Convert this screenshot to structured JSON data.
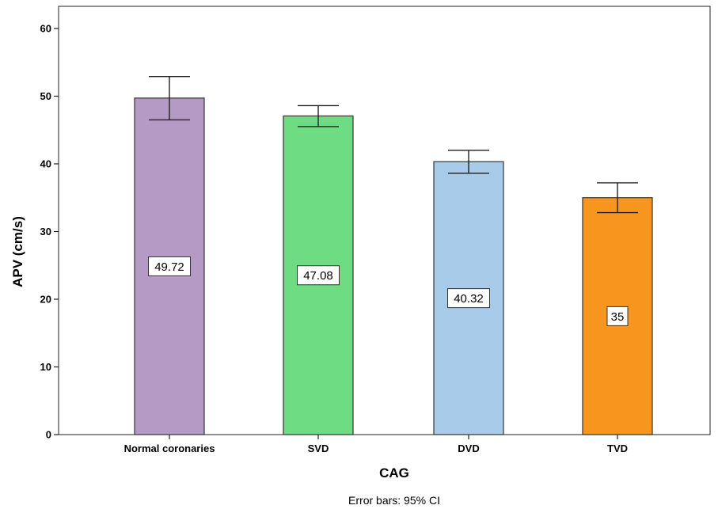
{
  "chart_data": {
    "type": "bar",
    "categories": [
      "Normal coronaries",
      "SVD",
      "DVD",
      "TVD"
    ],
    "values": [
      49.72,
      47.08,
      40.32,
      35
    ],
    "data_labels": [
      "49.72",
      "47.08",
      "40.32",
      "35"
    ],
    "error_bars": {
      "lower": [
        46.5,
        45.5,
        38.6,
        32.8
      ],
      "upper": [
        52.9,
        48.6,
        42.0,
        37.2
      ]
    },
    "colors": [
      "#b59ac6",
      "#6edc82",
      "#a9cbea",
      "#f7961f"
    ],
    "xlabel": "CAG",
    "ylabel": "APV (cm/s)",
    "ylim": [
      0,
      60
    ],
    "yticks": [
      0,
      10,
      20,
      30,
      40,
      50,
      60
    ],
    "grid": false,
    "note": "Error bars: 95% CI"
  }
}
